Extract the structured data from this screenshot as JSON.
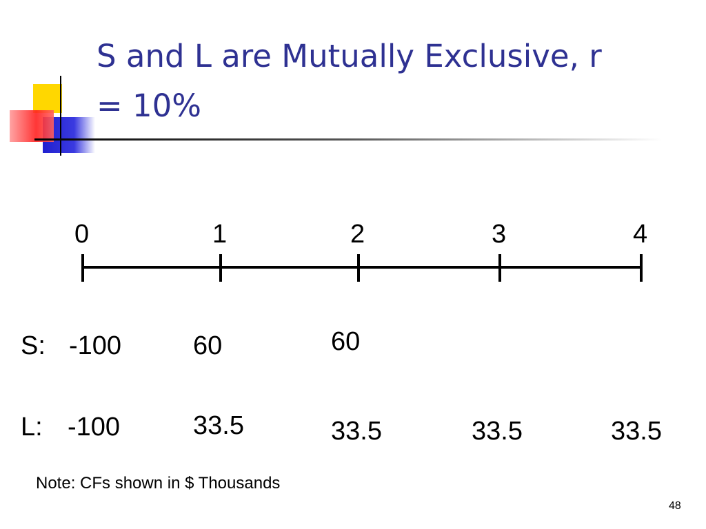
{
  "title_lines": [
    "S and L are Mutually Exclusive, r",
    "= 10%"
  ],
  "timeline": {
    "periods": [
      0,
      1,
      2,
      3,
      4
    ]
  },
  "rows": [
    {
      "label": "S:",
      "values": [
        -100,
        60,
        60
      ]
    },
    {
      "label": "L:",
      "values": [
        -100,
        33.5,
        33.5,
        33.5,
        33.5
      ]
    }
  ],
  "note": "Note: CFs shown in $ Thousands",
  "page_number": 48
}
